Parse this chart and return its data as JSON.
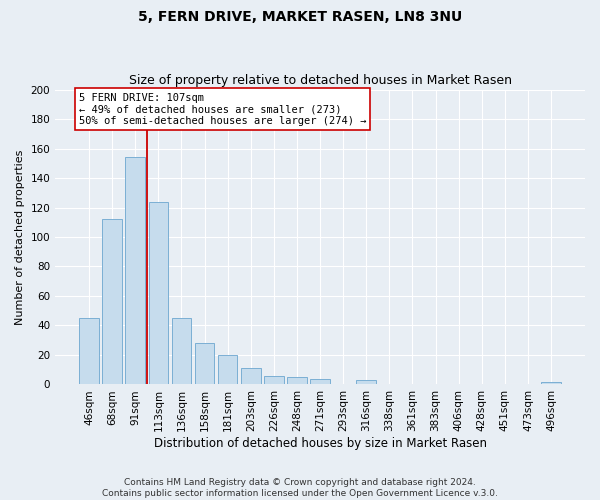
{
  "title": "5, FERN DRIVE, MARKET RASEN, LN8 3NU",
  "subtitle": "Size of property relative to detached houses in Market Rasen",
  "xlabel": "Distribution of detached houses by size in Market Rasen",
  "ylabel": "Number of detached properties",
  "bar_labels": [
    "46sqm",
    "68sqm",
    "91sqm",
    "113sqm",
    "136sqm",
    "158sqm",
    "181sqm",
    "203sqm",
    "226sqm",
    "248sqm",
    "271sqm",
    "293sqm",
    "316sqm",
    "338sqm",
    "361sqm",
    "383sqm",
    "406sqm",
    "428sqm",
    "451sqm",
    "473sqm",
    "496sqm"
  ],
  "bar_values": [
    45,
    112,
    154,
    124,
    45,
    28,
    20,
    11,
    6,
    5,
    4,
    0,
    3,
    0,
    0,
    0,
    0,
    0,
    0,
    0,
    2
  ],
  "bar_color": "#c6dced",
  "bar_edge_color": "#7bafd4",
  "marker_line_color": "#cc0000",
  "annotation_title": "5 FERN DRIVE: 107sqm",
  "annotation_line1": "← 49% of detached houses are smaller (273)",
  "annotation_line2": "50% of semi-detached houses are larger (274) →",
  "annotation_box_color": "#ffffff",
  "annotation_box_edge_color": "#cc0000",
  "ylim": [
    0,
    200
  ],
  "yticks": [
    0,
    20,
    40,
    60,
    80,
    100,
    120,
    140,
    160,
    180,
    200
  ],
  "footer1": "Contains HM Land Registry data © Crown copyright and database right 2024.",
  "footer2": "Contains public sector information licensed under the Open Government Licence v.3.0.",
  "bg_color": "#e8eef4",
  "plot_bg_color": "#e8eef4",
  "grid_color": "#ffffff",
  "title_fontsize": 10,
  "subtitle_fontsize": 9,
  "ylabel_fontsize": 8,
  "xlabel_fontsize": 8.5,
  "tick_fontsize": 7.5,
  "annot_fontsize": 7.5,
  "footer_fontsize": 6.5
}
